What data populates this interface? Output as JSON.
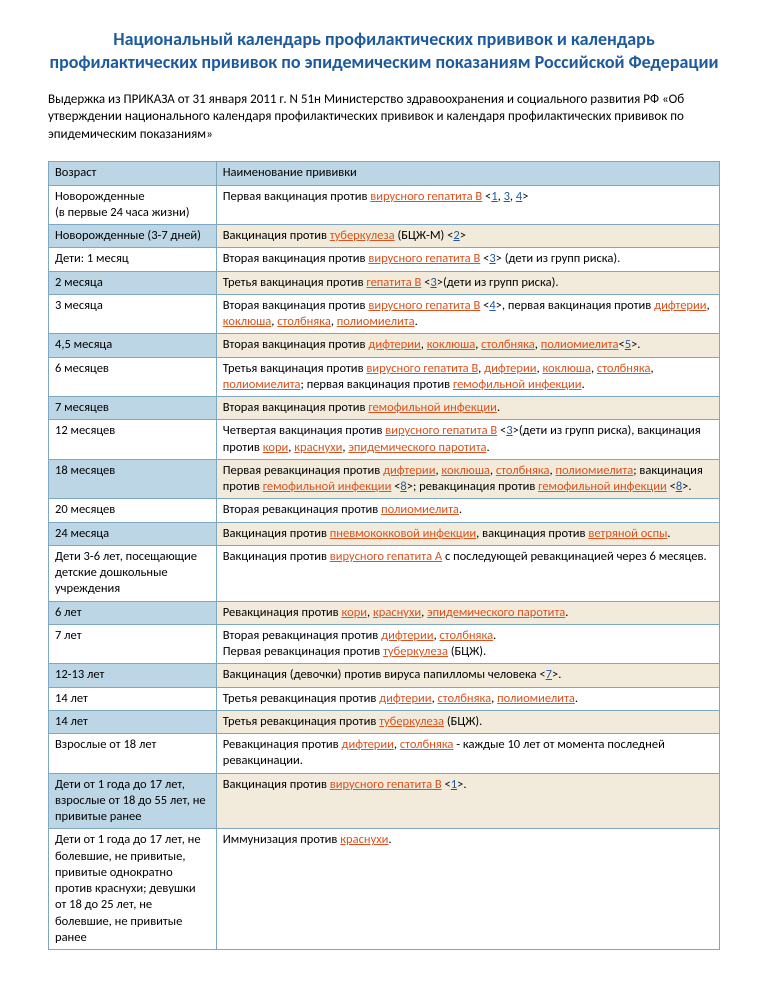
{
  "title": "Национальный календарь профилактических прививок и календарь профилактических прививок по эпидемическим показаниям Российской Федерации",
  "intro": "Выдержка из ПРИКАЗА от 31 января 2011 г. N 51н Министерство здравоохранения и социального развития РФ «Об утверждении национального календаря профилактических прививок и календаря профилактических прививок по эпидемическим показаниям»",
  "header": {
    "col1": "Возраст",
    "col2": "Наименование прививки"
  },
  "colors": {
    "title": "#1e5a9e",
    "link_disease": "#d9531e",
    "link_ref": "#1e5a9e",
    "stripe_age": "#bdd6e6",
    "stripe_desc": "#f2ebdc",
    "border": "#7ca8c4",
    "bg": "#ffffff"
  },
  "rows": [
    {
      "stripe": false,
      "age": "Новорожденные\n (в первые 24 часа жизни)",
      "parts": [
        {
          "t": "Первая вакцинация против "
        },
        {
          "t": "вирусного гепатита B",
          "l": "d"
        },
        {
          "t": " <"
        },
        {
          "t": "1",
          "l": "r"
        },
        {
          "t": ", "
        },
        {
          "t": "3",
          "l": "r"
        },
        {
          "t": ", "
        },
        {
          "t": "4",
          "l": "r"
        },
        {
          "t": ">"
        }
      ]
    },
    {
      "stripe": true,
      "age": "Новорожденные (3-7 дней)",
      "parts": [
        {
          "t": "Вакцинация против "
        },
        {
          "t": "туберкулеза",
          "l": "d"
        },
        {
          "t": " (БЦЖ-М) <"
        },
        {
          "t": "2",
          "l": "r"
        },
        {
          "t": ">"
        }
      ]
    },
    {
      "stripe": false,
      "age": "Дети: 1 месяц",
      "parts": [
        {
          "t": "Вторая вакцинация против "
        },
        {
          "t": "вирусного гепатита B",
          "l": "d"
        },
        {
          "t": " <"
        },
        {
          "t": "3",
          "l": "r"
        },
        {
          "t": "> (дети из групп риска)."
        }
      ]
    },
    {
      "stripe": true,
      "age": "2 месяца",
      "parts": [
        {
          "t": "Третья вакцинация против "
        },
        {
          "t": "гепатита B",
          "l": "d"
        },
        {
          "t": " <"
        },
        {
          "t": "3",
          "l": "r"
        },
        {
          "t": ">(дети из групп риска)."
        }
      ]
    },
    {
      "stripe": false,
      "age": "3 месяца",
      "parts": [
        {
          "t": "Вторая вакцинация против "
        },
        {
          "t": "вирусного гепатита B",
          "l": "d"
        },
        {
          "t": " <"
        },
        {
          "t": "4",
          "l": "r"
        },
        {
          "t": ">, первая вакцинация против "
        },
        {
          "t": "дифтерии",
          "l": "d"
        },
        {
          "t": ", "
        },
        {
          "t": "коклюша",
          "l": "d"
        },
        {
          "t": ", "
        },
        {
          "t": "столбняка",
          "l": "d"
        },
        {
          "t": ", "
        },
        {
          "t": "полиомиелита",
          "l": "d"
        },
        {
          "t": "."
        }
      ]
    },
    {
      "stripe": true,
      "age": "4,5 месяца",
      "parts": [
        {
          "t": "Вторая вакцинация против "
        },
        {
          "t": "дифтерии",
          "l": "d"
        },
        {
          "t": ", "
        },
        {
          "t": "коклюша",
          "l": "d"
        },
        {
          "t": ", "
        },
        {
          "t": "столбняка",
          "l": "d"
        },
        {
          "t": ", "
        },
        {
          "t": "полиомиелита",
          "l": "d"
        },
        {
          "t": "<"
        },
        {
          "t": "5",
          "l": "r"
        },
        {
          "t": ">."
        }
      ]
    },
    {
      "stripe": false,
      "age": "6 месяцев",
      "parts": [
        {
          "t": "Третья вакцинация против "
        },
        {
          "t": "вирусного гепатита B",
          "l": "d"
        },
        {
          "t": ", "
        },
        {
          "t": "дифтерии",
          "l": "d"
        },
        {
          "t": ", "
        },
        {
          "t": "коклюша",
          "l": "d"
        },
        {
          "t": ", "
        },
        {
          "t": "столбняка",
          "l": "d"
        },
        {
          "t": ", "
        },
        {
          "t": "полиомиелита",
          "l": "d"
        },
        {
          "t": "; первая вакцинация против "
        },
        {
          "t": "гемофильной инфекции",
          "l": "d"
        },
        {
          "t": "."
        }
      ]
    },
    {
      "stripe": true,
      "age": "7 месяцев",
      "parts": [
        {
          "t": "Вторая вакцинация против "
        },
        {
          "t": "гемофильной инфекции",
          "l": "d"
        },
        {
          "t": "."
        }
      ]
    },
    {
      "stripe": false,
      "age": "12 месяцев",
      "parts": [
        {
          "t": "Четвертая вакцинация против "
        },
        {
          "t": "вирусного гепатита B",
          "l": "d"
        },
        {
          "t": " <"
        },
        {
          "t": "3",
          "l": "r"
        },
        {
          "t": ">(дети из групп риска), вакцинация против "
        },
        {
          "t": "кори",
          "l": "d"
        },
        {
          "t": ", "
        },
        {
          "t": "краснухи",
          "l": "d"
        },
        {
          "t": ", "
        },
        {
          "t": "эпидемического паротита",
          "l": "d"
        },
        {
          "t": "."
        }
      ]
    },
    {
      "stripe": true,
      "age": "18 месяцев",
      "parts": [
        {
          "t": "Первая ревакцинация против "
        },
        {
          "t": "дифтерии",
          "l": "d"
        },
        {
          "t": ", "
        },
        {
          "t": "коклюша",
          "l": "d"
        },
        {
          "t": ", "
        },
        {
          "t": "столбняка",
          "l": "d"
        },
        {
          "t": ", "
        },
        {
          "t": "полиомиелита",
          "l": "d"
        },
        {
          "t": "; вакцинация против "
        },
        {
          "t": "гемофильной инфекции",
          "l": "d"
        },
        {
          "t": " <"
        },
        {
          "t": "8",
          "l": "r"
        },
        {
          "t": ">; ревакцинация против "
        },
        {
          "t": "гемофильной инфекции",
          "l": "d"
        },
        {
          "t": " <"
        },
        {
          "t": "8",
          "l": "r"
        },
        {
          "t": ">."
        }
      ]
    },
    {
      "stripe": false,
      "age": "20 месяцев",
      "parts": [
        {
          "t": "Вторая ревакцинация против "
        },
        {
          "t": "полиомиелита",
          "l": "d"
        },
        {
          "t": "."
        }
      ]
    },
    {
      "stripe": true,
      "age": "24 месяца",
      "parts": [
        {
          "t": "Вакцинация против "
        },
        {
          "t": "пневмококковой инфекции",
          "l": "d"
        },
        {
          "t": ", вакцинация против "
        },
        {
          "t": "ветряной оспы",
          "l": "d"
        },
        {
          "t": "."
        }
      ]
    },
    {
      "stripe": false,
      "age": "Дети 3-6 лет, посещающие детские дошкольные учреждения",
      "parts": [
        {
          "t": "Вакцинация против "
        },
        {
          "t": "вирусного гепатита A",
          "l": "d"
        },
        {
          "t": " с последующей ревакцинацией через 6 месяцев."
        }
      ]
    },
    {
      "stripe": true,
      "age": "6 лет",
      "parts": [
        {
          "t": "Ревакцинация против "
        },
        {
          "t": "кори",
          "l": "d"
        },
        {
          "t": ", "
        },
        {
          "t": "краснухи",
          "l": "d"
        },
        {
          "t": ", "
        },
        {
          "t": "эпидемического паротита",
          "l": "d"
        },
        {
          "t": "."
        }
      ]
    },
    {
      "stripe": false,
      "age": "7 лет",
      "parts": [
        {
          "t": "Вторая ревакцинация против "
        },
        {
          "t": "дифтерии",
          "l": "d"
        },
        {
          "t": ", "
        },
        {
          "t": "столбняка",
          "l": "d"
        },
        {
          "t": ".\nПервая ревакцинация против "
        },
        {
          "t": "туберкулеза",
          "l": "d"
        },
        {
          "t": " (БЦЖ)."
        }
      ]
    },
    {
      "stripe": true,
      "age": "12-13 лет",
      "parts": [
        {
          "t": "Вакцинация (девочки) против вируса папилломы человека <"
        },
        {
          "t": "7",
          "l": "r"
        },
        {
          "t": ">."
        }
      ]
    },
    {
      "stripe": false,
      "age": "14 лет",
      "parts": [
        {
          "t": "Третья ревакцинация против "
        },
        {
          "t": "дифтерии",
          "l": "d"
        },
        {
          "t": ", "
        },
        {
          "t": "столбняка",
          "l": "d"
        },
        {
          "t": ", "
        },
        {
          "t": "полиомиелита",
          "l": "d"
        },
        {
          "t": "."
        }
      ]
    },
    {
      "stripe": true,
      "age": "14 лет",
      "parts": [
        {
          "t": "Третья ревакцинация против "
        },
        {
          "t": "туберкулеза",
          "l": "d"
        },
        {
          "t": " (БЦЖ)."
        }
      ]
    },
    {
      "stripe": false,
      "age": "Взрослые от 18 лет",
      "parts": [
        {
          "t": "Ревакцинация против "
        },
        {
          "t": "дифтерии",
          "l": "d"
        },
        {
          "t": ", "
        },
        {
          "t": "столбняка",
          "l": "d"
        },
        {
          "t": " - каждые 10 лет от момента последней ревакцинации."
        }
      ]
    },
    {
      "stripe": true,
      "age": "Дети от 1 года до 17 лет, взрослые от 18 до 55 лет, не привитые ранее",
      "parts": [
        {
          "t": "Вакцинация против "
        },
        {
          "t": "вирусного гепатита B",
          "l": "d"
        },
        {
          "t": " <"
        },
        {
          "t": "1",
          "l": "r"
        },
        {
          "t": ">."
        }
      ]
    },
    {
      "stripe": false,
      "age": "Дети от 1 года до 17 лет, не болевшие, не привитые, привитые однократно против краснухи; девушки от 18 до 25 лет, не болевшие, не привитые ранее",
      "parts": [
        {
          "t": "Иммунизация против "
        },
        {
          "t": "краснухи",
          "l": "d"
        },
        {
          "t": "."
        }
      ]
    }
  ]
}
